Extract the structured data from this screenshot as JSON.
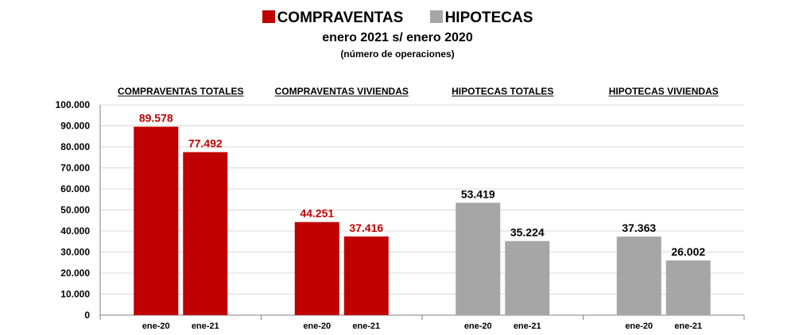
{
  "legend": [
    {
      "label": "COMPRAVENTAS",
      "color": "#c00000"
    },
    {
      "label": "HIPOTECAS",
      "color": "#a6a6a6"
    }
  ],
  "subtitle": "enero 2021 s/ enero 2020",
  "note": "(número de operaciones)",
  "chart_data": {
    "type": "bar",
    "ylim": [
      0,
      100000
    ],
    "ytick_step": 10000,
    "yticks": [
      "0",
      "10.000",
      "20.000",
      "30.000",
      "40.000",
      "50.000",
      "60.000",
      "70.000",
      "80.000",
      "90.000",
      "100.000"
    ],
    "grid": true,
    "legend_position": "top",
    "groups": [
      {
        "title": "COMPRAVENTAS TOTALES",
        "color": "#c00000",
        "label_color": "#c00000",
        "categories": [
          "ene-20",
          "ene-21"
        ],
        "values": [
          89578,
          77492
        ],
        "labels": [
          "89.578",
          "77.492"
        ]
      },
      {
        "title": "COMPRAVENTAS VIVIENDAS",
        "color": "#c00000",
        "label_color": "#c00000",
        "categories": [
          "ene-20",
          "ene-21"
        ],
        "values": [
          44251,
          37416
        ],
        "labels": [
          "44.251",
          "37.416"
        ]
      },
      {
        "title": "HIPOTECAS TOTALES",
        "color": "#a6a6a6",
        "label_color": "#000000",
        "categories": [
          "ene-20",
          "ene-21"
        ],
        "values": [
          53419,
          35224
        ],
        "labels": [
          "53.419",
          "35.224"
        ]
      },
      {
        "title": "HIPOTECAS VIVIENDAS",
        "color": "#a6a6a6",
        "label_color": "#000000",
        "categories": [
          "ene-20",
          "ene-21"
        ],
        "values": [
          37363,
          26002
        ],
        "labels": [
          "37.363",
          "26.002"
        ]
      }
    ]
  }
}
